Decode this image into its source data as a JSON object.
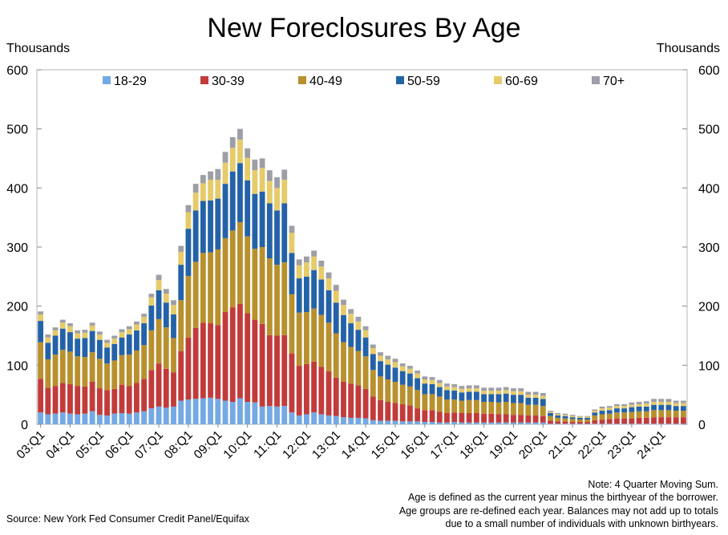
{
  "chart_data": {
    "type": "bar",
    "stacked": true,
    "title": "New Foreclosures By Age",
    "unit_left": "Thousands",
    "unit_right": "Thousands",
    "ylim": [
      0,
      600
    ],
    "yticks": [
      0,
      100,
      200,
      300,
      400,
      500,
      600
    ],
    "legend_position": "top",
    "grid": false,
    "categories": [
      "03:Q1",
      "03:Q2",
      "03:Q3",
      "03:Q4",
      "04:Q1",
      "04:Q2",
      "04:Q3",
      "04:Q4",
      "05:Q1",
      "05:Q2",
      "05:Q3",
      "05:Q4",
      "06:Q1",
      "06:Q2",
      "06:Q3",
      "06:Q4",
      "07:Q1",
      "07:Q2",
      "07:Q3",
      "07:Q4",
      "08:Q1",
      "08:Q2",
      "08:Q3",
      "08:Q4",
      "09:Q1",
      "09:Q2",
      "09:Q3",
      "09:Q4",
      "10:Q1",
      "10:Q2",
      "10:Q3",
      "10:Q4",
      "11:Q1",
      "11:Q2",
      "11:Q3",
      "11:Q4",
      "12:Q1",
      "12:Q2",
      "12:Q3",
      "12:Q4",
      "13:Q1",
      "13:Q2",
      "13:Q3",
      "13:Q4",
      "14:Q1",
      "14:Q2",
      "14:Q3",
      "14:Q4",
      "15:Q1",
      "15:Q2",
      "15:Q3",
      "15:Q4",
      "16:Q1",
      "16:Q2",
      "16:Q3",
      "16:Q4",
      "17:Q1",
      "17:Q2",
      "17:Q3",
      "17:Q4",
      "18:Q1",
      "18:Q2",
      "18:Q3",
      "18:Q4",
      "19:Q1",
      "19:Q2",
      "19:Q3",
      "19:Q4",
      "20:Q1",
      "20:Q2",
      "20:Q3",
      "20:Q4",
      "21:Q1",
      "21:Q2",
      "21:Q3",
      "21:Q4",
      "22:Q1",
      "22:Q2",
      "22:Q3",
      "22:Q4",
      "23:Q1",
      "23:Q2",
      "23:Q3",
      "23:Q4",
      "24:Q1",
      "24:Q2",
      "24:Q3",
      "24:Q4"
    ],
    "xtick_labels": [
      "03:Q1",
      "04:Q1",
      "05:Q1",
      "06:Q1",
      "07:Q1",
      "08:Q1",
      "09:Q1",
      "10:Q1",
      "11:Q1",
      "12:Q1",
      "13:Q1",
      "14:Q1",
      "15:Q1",
      "16:Q1",
      "17:Q1",
      "18:Q1",
      "19:Q1",
      "20:Q1",
      "21:Q1",
      "22:Q1",
      "23:Q1",
      "24:Q1"
    ],
    "series": [
      {
        "name": "18-29",
        "color": "#74a9e4",
        "values": [
          20,
          17,
          18,
          20,
          18,
          17,
          18,
          22,
          16,
          15,
          18,
          19,
          18,
          20,
          22,
          27,
          30,
          28,
          30,
          40,
          42,
          43,
          44,
          45,
          43,
          40,
          38,
          44,
          38,
          37,
          30,
          31,
          30,
          31,
          20,
          15,
          17,
          20,
          17,
          15,
          14,
          12,
          11,
          11,
          10,
          7,
          6,
          6,
          6,
          5,
          5,
          5,
          4,
          4,
          3,
          3,
          4,
          3,
          3,
          3,
          3,
          3,
          3,
          3,
          3,
          3,
          3,
          3,
          3,
          1,
          1,
          1,
          1,
          1,
          1,
          1,
          1,
          1,
          1,
          1,
          1,
          1,
          1,
          1,
          1,
          1,
          1,
          1
        ]
      },
      {
        "name": "30-39",
        "color": "#c23b3b",
        "values": [
          57,
          45,
          47,
          50,
          50,
          48,
          46,
          50,
          45,
          43,
          42,
          48,
          47,
          50,
          55,
          65,
          73,
          66,
          58,
          84,
          105,
          120,
          128,
          126,
          125,
          150,
          160,
          160,
          150,
          140,
          140,
          120,
          120,
          120,
          100,
          84,
          85,
          86,
          80,
          75,
          65,
          60,
          58,
          55,
          50,
          40,
          35,
          32,
          30,
          29,
          27,
          22,
          20,
          20,
          18,
          16,
          16,
          16,
          16,
          16,
          15,
          15,
          14,
          14,
          13,
          13,
          12,
          12,
          11,
          5,
          4,
          4,
          3,
          3,
          3,
          6,
          7,
          8,
          9,
          9,
          9,
          10,
          10,
          11,
          11,
          11,
          11,
          11
        ]
      },
      {
        "name": "40-49",
        "color": "#b8902d",
        "values": [
          62,
          48,
          53,
          56,
          55,
          50,
          50,
          50,
          50,
          45,
          48,
          50,
          53,
          55,
          57,
          67,
          75,
          70,
          58,
          86,
          104,
          112,
          118,
          120,
          128,
          125,
          130,
          138,
          130,
          120,
          130,
          130,
          120,
          123,
          100,
          90,
          88,
          90,
          88,
          82,
          75,
          67,
          62,
          58,
          55,
          45,
          40,
          38,
          36,
          33,
          32,
          31,
          27,
          27,
          26,
          23,
          22,
          21,
          22,
          22,
          20,
          20,
          20,
          21,
          20,
          20,
          18,
          18,
          17,
          8,
          6,
          5,
          5,
          4,
          4,
          8,
          9,
          9,
          10,
          10,
          11,
          11,
          11,
          12,
          12,
          12,
          11,
          11
        ]
      },
      {
        "name": "50-59",
        "color": "#2462a8",
        "values": [
          36,
          28,
          32,
          36,
          33,
          30,
          32,
          36,
          32,
          27,
          28,
          30,
          34,
          34,
          37,
          42,
          49,
          42,
          40,
          60,
          80,
          87,
          88,
          88,
          86,
          92,
          100,
          100,
          95,
          93,
          94,
          93,
          92,
          100,
          70,
          58,
          60,
          65,
          60,
          55,
          52,
          46,
          40,
          36,
          32,
          27,
          26,
          25,
          24,
          23,
          22,
          20,
          18,
          17,
          16,
          16,
          15,
          14,
          14,
          14,
          13,
          13,
          14,
          14,
          14,
          14,
          12,
          12,
          12,
          5,
          4,
          4,
          3,
          3,
          3,
          5,
          6,
          6,
          7,
          7,
          8,
          8,
          8,
          9,
          9,
          9,
          8,
          8
        ]
      },
      {
        "name": "60-69",
        "color": "#e6cb6a",
        "values": [
          11,
          9,
          9,
          10,
          10,
          9,
          9,
          9,
          9,
          8,
          9,
          9,
          9,
          10,
          11,
          14,
          17,
          15,
          16,
          22,
          28,
          30,
          30,
          35,
          32,
          36,
          40,
          40,
          38,
          40,
          40,
          38,
          38,
          40,
          34,
          22,
          24,
          23,
          22,
          20,
          20,
          17,
          16,
          14,
          12,
          10,
          9,
          9,
          9,
          8,
          8,
          8,
          7,
          7,
          7,
          6,
          6,
          6,
          6,
          6,
          6,
          6,
          6,
          6,
          6,
          6,
          5,
          5,
          5,
          2,
          2,
          2,
          2,
          2,
          2,
          3,
          4,
          4,
          4,
          4,
          4,
          4,
          5,
          5,
          5,
          5,
          5,
          5
        ]
      },
      {
        "name": "70+",
        "color": "#9e9ea6",
        "values": [
          5,
          5,
          5,
          5,
          5,
          5,
          5,
          5,
          5,
          5,
          5,
          5,
          5,
          5,
          5,
          6,
          9,
          8,
          8,
          10,
          12,
          15,
          14,
          14,
          18,
          18,
          18,
          18,
          16,
          18,
          16,
          18,
          18,
          17,
          12,
          10,
          10,
          10,
          10,
          10,
          10,
          9,
          8,
          8,
          7,
          6,
          6,
          6,
          6,
          5,
          5,
          5,
          5,
          5,
          5,
          5,
          5,
          5,
          5,
          5,
          5,
          5,
          5,
          5,
          5,
          5,
          5,
          5,
          5,
          2,
          2,
          2,
          2,
          1,
          1,
          2,
          3,
          3,
          3,
          3,
          4,
          4,
          4,
          5,
          5,
          5,
          4,
          4
        ]
      }
    ]
  },
  "notes": [
    "Note: 4 Quarter Moving Sum.",
    "Age is defined as the current year minus the birthyear of the borrower.",
    "Age groups are re-defined each year. Balances may not add up to totals",
    "due to a small number of individuals with unknown birthyears."
  ],
  "source": "Source: New York Fed Consumer Credit Panel/Equifax"
}
